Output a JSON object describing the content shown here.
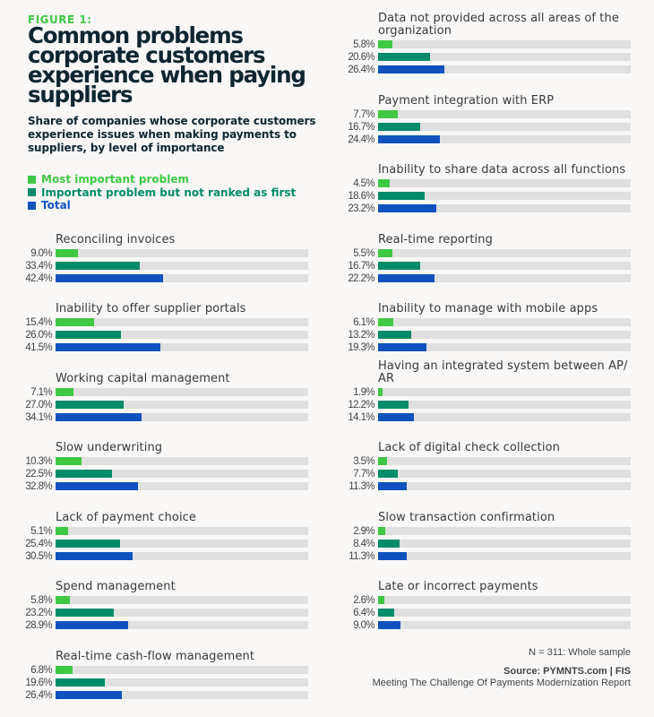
{
  "figure_label": "FIGURE 1:",
  "colors": {
    "most_important": "#3fc843",
    "important": "#008c68",
    "total": "#0f52bd",
    "track": "#e0e0e0",
    "title": "#0e2530"
  },
  "footnote": "N = 311: Whole sample",
  "source": {
    "line1": "Source: PYMNTS.com  |  FIS",
    "line2": "Meeting The Challenge Of Payments Modernization Report"
  },
  "chart_data": {
    "type": "bar",
    "orientation": "horizontal",
    "title": "Common problems corporate customers experience when paying suppliers",
    "subtitle": "Share of companies whose corporate customers experience issues when making payments to suppliers, by level of importance",
    "value_unit": "%",
    "xlim": [
      0,
      100
    ],
    "grid": false,
    "legend_placement": "top-left",
    "legend": [
      {
        "name": "Most important problem",
        "key": "most_important"
      },
      {
        "name": "Important problem but not ranked as first",
        "key": "important"
      },
      {
        "name": "Total",
        "key": "total"
      }
    ],
    "categories": [
      "Reconciling invoices",
      "Inability to offer supplier portals",
      "Working capital management",
      "Slow underwriting",
      "Lack of payment choice",
      "Spend management",
      "Real-time cash-flow management",
      "Data not provided across all areas of the organization",
      "Payment integration with ERP",
      "Inability to share data across all functions",
      "Real-time reporting",
      "Inability to manage with mobile apps",
      "Having an integrated system between AP/ AR",
      "Lack of digital check collection",
      "Slow transaction confirmation",
      "Late or incorrect payments"
    ],
    "series": [
      {
        "name": "Most important problem",
        "values": [
          9.0,
          15.4,
          7.1,
          10.3,
          5.1,
          5.8,
          6.8,
          5.8,
          7.7,
          4.5,
          5.5,
          6.1,
          1.9,
          3.5,
          2.9,
          2.6
        ]
      },
      {
        "name": "Important problem but not ranked as first",
        "values": [
          33.4,
          26.0,
          27.0,
          22.5,
          25.4,
          23.2,
          19.6,
          20.6,
          16.7,
          18.6,
          16.7,
          13.2,
          12.2,
          7.7,
          8.4,
          6.4
        ]
      },
      {
        "name": "Total",
        "values": [
          42.4,
          41.5,
          34.1,
          32.8,
          30.5,
          28.9,
          26.4,
          26.4,
          24.4,
          23.2,
          22.2,
          19.3,
          14.1,
          11.3,
          11.3,
          9.0
        ]
      }
    ],
    "value_labels": [
      [
        "9.0%",
        "33.4%",
        "42.4%"
      ],
      [
        "15.4%",
        "26.0%",
        "41.5%"
      ],
      [
        "7.1%",
        "27.0%",
        "34.1%"
      ],
      [
        "10.3%",
        "22.5%",
        "32.8%"
      ],
      [
        "5.1%",
        "25.4%",
        "30.5%"
      ],
      [
        "5.8%",
        "23.2%",
        "28.9%"
      ],
      [
        "6.8%",
        "19.6%",
        "26.4%"
      ],
      [
        "5.8%",
        "20.6%",
        "26.4%"
      ],
      [
        "7.7%",
        "16.7%",
        "24.4%"
      ],
      [
        "4.5%",
        "18.6%",
        "23.2%"
      ],
      [
        "5.5%",
        "16.7%",
        "22.2%"
      ],
      [
        "6.1%",
        "13.2%",
        "19.3%"
      ],
      [
        "1.9%",
        "12.2%",
        "14.1%"
      ],
      [
        "3.5%",
        "7.7%",
        "11.3%"
      ],
      [
        "2.9%",
        "8.4%",
        "11.3%"
      ],
      [
        "2.6%",
        "6.4%",
        "9.0%"
      ]
    ]
  }
}
